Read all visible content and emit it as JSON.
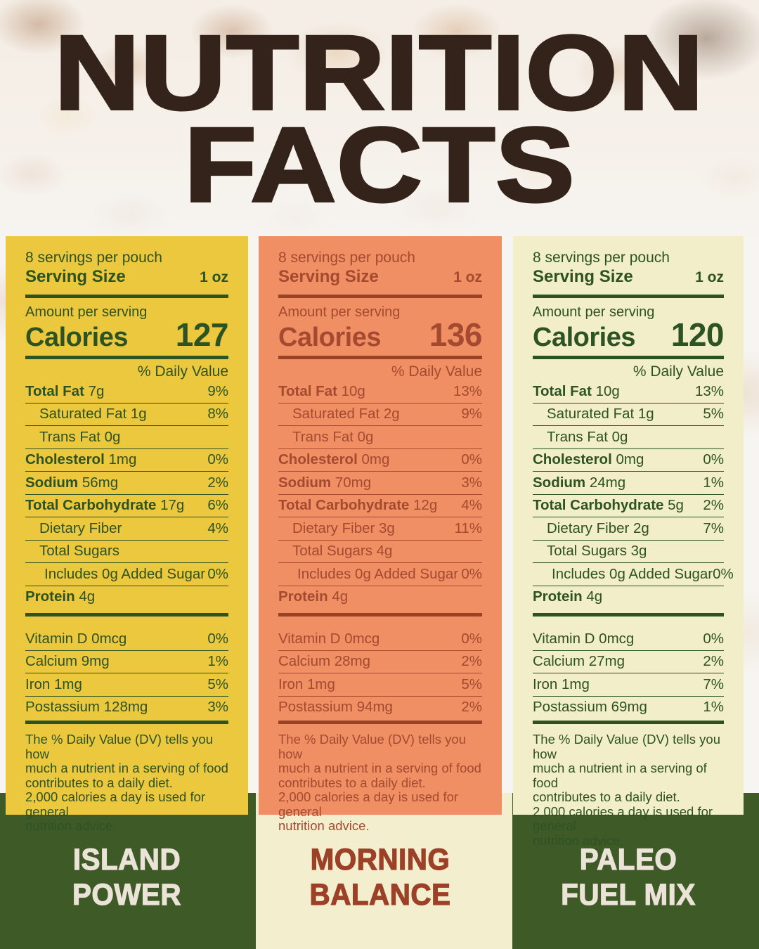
{
  "header": {
    "title_line1": "NUTRITION",
    "title_line2": "FACTS"
  },
  "colors": {
    "page_bg": "#f7f5f2",
    "title_brown": "#33231a",
    "band_green": "#3e5a26",
    "band_cream": "#f3eecd"
  },
  "panels": [
    {
      "product_name_lines": [
        "ISLAND",
        "POWER"
      ],
      "name_color": "#ece3d8",
      "bg": "#ecc83e",
      "fg": "#2d5223",
      "accent": "#2d5223",
      "servings": "8 servings per pouch",
      "serving_size_label": "Serving Size",
      "serving_size_value": "1 oz",
      "amount_label": "Amount per serving",
      "calories_label": "Calories",
      "calories_value": "127",
      "dv_header": "% Daily Value",
      "rows": [
        {
          "bold": "Total Fat",
          "rest": "7g",
          "pct": "9%",
          "indent": 0
        },
        {
          "bold": "",
          "rest": "Saturated Fat 1g",
          "pct": "8%",
          "indent": 1
        },
        {
          "bold": "",
          "rest": "Trans Fat 0g",
          "pct": "",
          "indent": 1
        },
        {
          "bold": "Cholesterol",
          "rest": "1mg",
          "pct": "0%",
          "indent": 0
        },
        {
          "bold": "Sodium",
          "rest": "56mg",
          "pct": "2%",
          "indent": 0
        },
        {
          "bold": "Total Carbohydrate",
          "rest": "17g",
          "pct": "6%",
          "indent": 0
        },
        {
          "bold": "",
          "rest": "Dietary Fiber",
          "pct": "4%",
          "indent": 1
        },
        {
          "bold": "",
          "rest": "Total Sugars",
          "pct": "",
          "indent": 1
        },
        {
          "bold": "",
          "rest": "Includes 0g Added Sugar",
          "pct": "0%",
          "indent": 2
        },
        {
          "bold": "Protein",
          "rest": "4g",
          "pct": "",
          "indent": 0
        }
      ],
      "vitamins": [
        {
          "label": "Vitamin D 0mcg",
          "pct": "0%"
        },
        {
          "label": "Calcium 9mg",
          "pct": "1%"
        },
        {
          "label": "Iron 1mg",
          "pct": "5%"
        },
        {
          "label": "Postassium 128mg",
          "pct": "3%"
        }
      ],
      "footnote_lines": [
        "The % Daily Value (DV) tells you how",
        "much a nutrient in a serving of food",
        "contributes to a daily diet.",
        "2,000 calories a day is used for general",
        "nutrition advice."
      ]
    },
    {
      "product_name_lines": [
        "MORNING",
        "BALANCE"
      ],
      "name_color": "#9c4128",
      "bg": "#f08e64",
      "fg": "#a34a30",
      "accent": "#9a4226",
      "servings": "8 servings per pouch",
      "serving_size_label": "Serving Size",
      "serving_size_value": "1 oz",
      "amount_label": "Amount per serving",
      "calories_label": "Calories",
      "calories_value": "136",
      "dv_header": "% Daily Value",
      "rows": [
        {
          "bold": "Total Fat",
          "rest": "10g",
          "pct": "13%",
          "indent": 0
        },
        {
          "bold": "",
          "rest": "Saturated Fat 2g",
          "pct": "9%",
          "indent": 1
        },
        {
          "bold": "",
          "rest": "Trans Fat 0g",
          "pct": "",
          "indent": 1
        },
        {
          "bold": "Cholesterol",
          "rest": "0mg",
          "pct": "0%",
          "indent": 0
        },
        {
          "bold": "Sodium",
          "rest": "70mg",
          "pct": "3%",
          "indent": 0
        },
        {
          "bold": "Total Carbohydrate",
          "rest": "12g",
          "pct": "4%",
          "indent": 0
        },
        {
          "bold": "",
          "rest": "Dietary Fiber 3g",
          "pct": "11%",
          "indent": 1
        },
        {
          "bold": "",
          "rest": "Total Sugars 4g",
          "pct": "",
          "indent": 1
        },
        {
          "bold": "",
          "rest": "Includes 0g Added Sugar",
          "pct": "0%",
          "indent": 2
        },
        {
          "bold": "Protein",
          "rest": "4g",
          "pct": "",
          "indent": 0
        }
      ],
      "vitamins": [
        {
          "label": "Vitamin D 0mcg",
          "pct": "0%"
        },
        {
          "label": "Calcium 28mg",
          "pct": "2%"
        },
        {
          "label": "Iron 1mg",
          "pct": "5%"
        },
        {
          "label": "Postassium 94mg",
          "pct": "2%"
        }
      ],
      "footnote_lines": [
        "The % Daily Value (DV) tells you how",
        "much a nutrient in a serving of food",
        "contributes to a daily diet.",
        "2,000 calories a day is used for general",
        "nutrition advice."
      ]
    },
    {
      "product_name_lines": [
        "PALEO",
        "FUEL MIX"
      ],
      "name_color": "#ece3d8",
      "bg": "#f2eec9",
      "fg": "#2d5223",
      "accent": "#2d5223",
      "servings": "8 servings per pouch",
      "serving_size_label": "Serving Size",
      "serving_size_value": "1 oz",
      "amount_label": "Amount per serving",
      "calories_label": "Calories",
      "calories_value": "120",
      "dv_header": "% Daily Value",
      "rows": [
        {
          "bold": "Total Fat",
          "rest": "10g",
          "pct": "13%",
          "indent": 0
        },
        {
          "bold": "",
          "rest": "Saturated Fat 1g",
          "pct": "5%",
          "indent": 1
        },
        {
          "bold": "",
          "rest": "Trans Fat 0g",
          "pct": "",
          "indent": 1
        },
        {
          "bold": "Cholesterol",
          "rest": "0mg",
          "pct": "0%",
          "indent": 0
        },
        {
          "bold": "Sodium",
          "rest": "24mg",
          "pct": "1%",
          "indent": 0
        },
        {
          "bold": "Total Carbohydrate",
          "rest": "5g",
          "pct": "2%",
          "indent": 0
        },
        {
          "bold": "",
          "rest": "Dietary Fiber 2g",
          "pct": "7%",
          "indent": 1
        },
        {
          "bold": "",
          "rest": "Total Sugars 3g",
          "pct": "",
          "indent": 1
        },
        {
          "bold": "",
          "rest": "Includes 0g Added Sugar",
          "pct": "0%",
          "indent": 2
        },
        {
          "bold": "Protein",
          "rest": "4g",
          "pct": "",
          "indent": 0
        }
      ],
      "vitamins": [
        {
          "label": "Vitamin D 0mcg",
          "pct": "0%"
        },
        {
          "label": "Calcium 27mg",
          "pct": "2%"
        },
        {
          "label": "Iron 1mg",
          "pct": "7%"
        },
        {
          "label": "Postassium 69mg",
          "pct": "1%"
        }
      ],
      "footnote_lines": [
        "The % Daily Value (DV) tells you how",
        "much a nutrient in a serving of food",
        "contributes to a daily diet.",
        "2,000 calories a day is used for general",
        "nutrition advice."
      ]
    }
  ]
}
